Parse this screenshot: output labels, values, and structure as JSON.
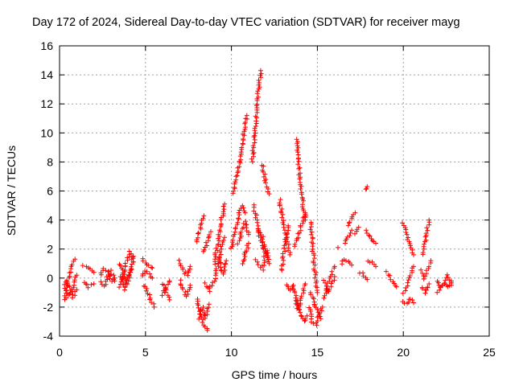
{
  "chart_data": {
    "type": "scatter",
    "title": "Day 172 of 2024, Sidereal Day-to-day VTEC variation (SDTVAR) for receiver mayg",
    "xlabel": "GPS time / hours",
    "ylabel": "SDTVAR / TECUs",
    "xlim": [
      0,
      25
    ],
    "ylim": [
      -4,
      16
    ],
    "xticks": [
      0,
      5,
      10,
      15,
      20,
      25
    ],
    "xtick_labels": [
      "0",
      "5",
      "10",
      "15",
      "20",
      "25"
    ],
    "yticks": [
      -4,
      -2,
      0,
      2,
      4,
      6,
      8,
      10,
      12,
      14,
      16
    ],
    "ytick_labels": [
      "-4",
      "-2",
      "0",
      "2",
      "4",
      "6",
      "8",
      "10",
      "12",
      "14",
      "16"
    ],
    "grid": true,
    "marker": "+",
    "marker_color": "#ff0000",
    "series": [
      {
        "name": "SDTVAR",
        "tracks": [
          {
            "x": [
              0.3,
              0.5,
              0.7,
              0.9
            ],
            "y": [
              -1.5,
              0.0,
              0.8,
              1.3
            ]
          },
          {
            "x": [
              0.3,
              0.5,
              0.7,
              0.9,
              1.0
            ],
            "y": [
              -0.5,
              -1.2,
              -0.8,
              -0.3,
              0.2
            ]
          },
          {
            "x": [
              0.4,
              0.6,
              0.8,
              1.0
            ],
            "y": [
              -0.2,
              -0.6,
              -1.3,
              -0.8
            ]
          },
          {
            "x": [
              1.4,
              1.7,
              2.0
            ],
            "y": [
              0.9,
              0.7,
              0.4
            ]
          },
          {
            "x": [
              1.4,
              1.7,
              2.0
            ],
            "y": [
              -0.3,
              -0.6,
              -0.4
            ]
          },
          {
            "x": [
              2.4,
              2.6,
              2.8,
              3.0,
              3.2
            ],
            "y": [
              0.2,
              0.7,
              0.4,
              -0.2,
              0.0
            ]
          },
          {
            "x": [
              2.4,
              2.6,
              2.8,
              3.0,
              3.2
            ],
            "y": [
              -0.3,
              -0.6,
              0.1,
              0.5,
              -0.2
            ]
          },
          {
            "x": [
              3.5,
              3.7,
              3.9,
              4.1,
              4.3
            ],
            "y": [
              1.0,
              0.4,
              -0.3,
              0.5,
              1.5
            ]
          },
          {
            "x": [
              3.5,
              3.7,
              3.9,
              4.1,
              4.3
            ],
            "y": [
              -0.6,
              0.3,
              1.2,
              1.8,
              1.1
            ]
          },
          {
            "x": [
              3.6,
              3.8,
              4.0,
              4.2
            ],
            "y": [
              0.1,
              -0.8,
              -0.2,
              0.6
            ]
          },
          {
            "x": [
              4.8,
              5.0,
              5.2,
              5.4
            ],
            "y": [
              1.3,
              1.0,
              0.9,
              0.7
            ]
          },
          {
            "x": [
              4.8,
              5.0,
              5.2,
              5.4
            ],
            "y": [
              0.1,
              0.5,
              0.3,
              0.0
            ]
          },
          {
            "x": [
              4.9,
              5.1,
              5.3,
              5.5
            ],
            "y": [
              -0.5,
              -0.9,
              -1.5,
              -2.0
            ]
          },
          {
            "x": [
              6.0,
              6.2,
              6.4
            ],
            "y": [
              -0.4,
              -1.0,
              -1.5
            ]
          },
          {
            "x": [
              6.0,
              6.2,
              6.4
            ],
            "y": [
              -1.2,
              -0.6,
              -0.2
            ]
          },
          {
            "x": [
              7.0,
              7.2,
              7.4,
              7.6
            ],
            "y": [
              1.2,
              0.6,
              0.2,
              0.8
            ]
          },
          {
            "x": [
              7.0,
              7.2,
              7.4,
              7.6
            ],
            "y": [
              -0.2,
              -0.8,
              -1.3,
              -0.5
            ]
          },
          {
            "x": [
              8.0,
              8.2,
              8.4,
              8.6
            ],
            "y": [
              -1.4,
              -2.5,
              -3.2,
              -3.6
            ]
          },
          {
            "x": [
              8.1,
              8.3,
              8.5,
              8.7
            ],
            "y": [
              -2.8,
              -2.0,
              -2.8,
              -1.8
            ]
          },
          {
            "x": [
              8.0,
              8.2,
              8.4
            ],
            "y": [
              2.5,
              3.5,
              4.3
            ]
          },
          {
            "x": [
              8.4,
              8.6,
              8.8
            ],
            "y": [
              1.8,
              2.6,
              3.2
            ]
          },
          {
            "x": [
              8.5,
              8.7,
              8.9
            ],
            "y": [
              -0.4,
              -0.9,
              -0.3
            ]
          },
          {
            "x": [
              9.0,
              9.2,
              9.4,
              9.6
            ],
            "y": [
              1.0,
              2.4,
              3.8,
              5.1
            ]
          },
          {
            "x": [
              9.0,
              9.2,
              9.4,
              9.6
            ],
            "y": [
              -0.2,
              0.8,
              2.0,
              2.8
            ]
          },
          {
            "x": [
              9.3,
              9.5,
              9.7
            ],
            "y": [
              1.4,
              0.3,
              1.2
            ]
          },
          {
            "x": [
              10.1,
              10.3,
              10.5,
              10.7,
              10.9
            ],
            "y": [
              5.8,
              6.8,
              8.2,
              9.8,
              11.2
            ]
          },
          {
            "x": [
              10.0,
              10.2,
              10.4,
              10.6,
              10.8
            ],
            "y": [
              2.0,
              3.0,
              4.2,
              5.0,
              4.5
            ]
          },
          {
            "x": [
              10.4,
              10.6,
              10.8,
              11.0
            ],
            "y": [
              2.4,
              3.2,
              3.9,
              3.0
            ]
          },
          {
            "x": [
              10.6,
              10.8,
              11.0
            ],
            "y": [
              1.0,
              1.6,
              2.4
            ]
          },
          {
            "x": [
              11.2,
              11.4,
              11.5,
              11.6,
              11.7
            ],
            "y": [
              8.0,
              10.5,
              12.2,
              13.2,
              14.3
            ]
          },
          {
            "x": [
              11.3,
              11.5,
              11.7,
              11.9,
              12.1
            ],
            "y": [
              5.0,
              3.8,
              2.6,
              2.0,
              1.4
            ]
          },
          {
            "x": [
              11.4,
              11.6,
              11.8,
              12.0
            ],
            "y": [
              1.2,
              0.9,
              0.6,
              1.8
            ]
          },
          {
            "x": [
              11.8,
              12.0,
              12.2
            ],
            "y": [
              7.8,
              6.5,
              5.8
            ]
          },
          {
            "x": [
              11.6,
              11.8,
              12.0,
              12.2
            ],
            "y": [
              3.4,
              2.8,
              2.0,
              1.0
            ]
          },
          {
            "x": [
              12.8,
              13.0,
              13.2,
              13.4
            ],
            "y": [
              5.4,
              4.0,
              2.8,
              1.6
            ]
          },
          {
            "x": [
              12.9,
              13.1,
              13.3
            ],
            "y": [
              0.5,
              2.2,
              3.6
            ]
          },
          {
            "x": [
              13.2,
              13.4,
              13.6
            ],
            "y": [
              -0.4,
              -0.8,
              -0.5
            ]
          },
          {
            "x": [
              13.8,
              13.9,
              14.0,
              14.1,
              14.3
            ],
            "y": [
              9.6,
              8.0,
              6.6,
              5.6,
              4.0
            ]
          },
          {
            "x": [
              13.7,
              13.9,
              14.1,
              14.3
            ],
            "y": [
              2.2,
              3.0,
              3.8,
              4.4
            ]
          },
          {
            "x": [
              13.6,
              13.8,
              14.0,
              14.2,
              14.4
            ],
            "y": [
              -0.6,
              -1.5,
              -2.4,
              -3.0,
              -2.6
            ]
          },
          {
            "x": [
              13.7,
              13.9,
              14.1,
              14.3
            ],
            "y": [
              -1.6,
              -2.2,
              -1.2,
              -0.4
            ]
          },
          {
            "x": [
              14.6,
              14.7,
              14.8,
              14.9,
              15.0
            ],
            "y": [
              3.9,
              2.5,
              1.2,
              0.0,
              -1.0
            ]
          },
          {
            "x": [
              14.5,
              14.7,
              14.9,
              15.1,
              15.3
            ],
            "y": [
              -2.0,
              -3.0,
              -3.2,
              -2.6,
              -2.0
            ]
          },
          {
            "x": [
              14.6,
              14.8,
              15.0,
              15.2
            ],
            "y": [
              -1.0,
              -1.6,
              -2.4,
              -2.8
            ]
          },
          {
            "x": [
              15.4,
              15.6,
              15.8,
              16.0
            ],
            "y": [
              -1.4,
              -0.4,
              0.3,
              0.8
            ]
          },
          {
            "x": [
              15.4,
              15.6,
              15.8,
              16.0
            ],
            "y": [
              -0.2,
              -1.0,
              -0.6,
              0.1
            ]
          },
          {
            "x": [
              16.2
            ],
            "y": [
              2.1
            ]
          },
          {
            "x": [
              16.4,
              16.6,
              16.8,
              17.0
            ],
            "y": [
              1.0,
              1.3,
              1.1,
              0.9
            ]
          },
          {
            "x": [
              16.6,
              16.8,
              17.0
            ],
            "y": [
              2.4,
              2.8,
              3.3
            ]
          },
          {
            "x": [
              16.8,
              17.0,
              17.2
            ],
            "y": [
              3.6,
              4.2,
              4.5
            ]
          },
          {
            "x": [
              17.2,
              17.4
            ],
            "y": [
              3.0,
              3.5
            ]
          },
          {
            "x": [
              17.5,
              17.7,
              17.9
            ],
            "y": [
              0.4,
              0.2,
              -0.1
            ]
          },
          {
            "x": [
              18.0,
              18.2,
              18.4
            ],
            "y": [
              1.2,
              1.1,
              0.8
            ]
          },
          {
            "x": [
              17.8,
              18.0,
              18.2,
              18.4
            ],
            "y": [
              3.3,
              3.0,
              2.6,
              2.4
            ]
          },
          {
            "x": [
              17.8,
              17.9
            ],
            "y": [
              6.1,
              6.3
            ]
          },
          {
            "x": [
              19.0,
              19.2,
              19.4,
              19.6
            ],
            "y": [
              0.4,
              0.1,
              -0.2,
              -0.6
            ]
          },
          {
            "x": [
              20.0,
              20.2,
              20.4,
              20.6
            ],
            "y": [
              -1.0,
              -0.5,
              0.2,
              0.8
            ]
          },
          {
            "x": [
              20.0,
              20.2,
              20.4,
              20.6
            ],
            "y": [
              -1.6,
              -1.8,
              -1.4,
              -1.7
            ]
          },
          {
            "x": [
              20.0,
              20.2,
              20.4,
              20.6
            ],
            "y": [
              3.8,
              3.0,
              2.2,
              1.6
            ]
          },
          {
            "x": [
              21.1,
              21.3,
              21.5
            ],
            "y": [
              1.6,
              2.8,
              4.0
            ]
          },
          {
            "x": [
              21.0,
              21.2,
              21.4,
              21.6
            ],
            "y": [
              0.5,
              0.0,
              0.5,
              1.2
            ]
          },
          {
            "x": [
              21.1,
              21.3,
              21.5
            ],
            "y": [
              -0.6,
              -1.0,
              -0.4
            ]
          },
          {
            "x": [
              22.0,
              22.2,
              22.4,
              22.6,
              22.8
            ],
            "y": [
              -0.2,
              -0.6,
              -0.3,
              0.2,
              -0.5
            ]
          },
          {
            "x": [
              22.0,
              22.2,
              22.4,
              22.6,
              22.8
            ],
            "y": [
              -1.0,
              -0.7,
              -0.4,
              -0.6,
              -0.2
            ]
          }
        ]
      }
    ]
  }
}
